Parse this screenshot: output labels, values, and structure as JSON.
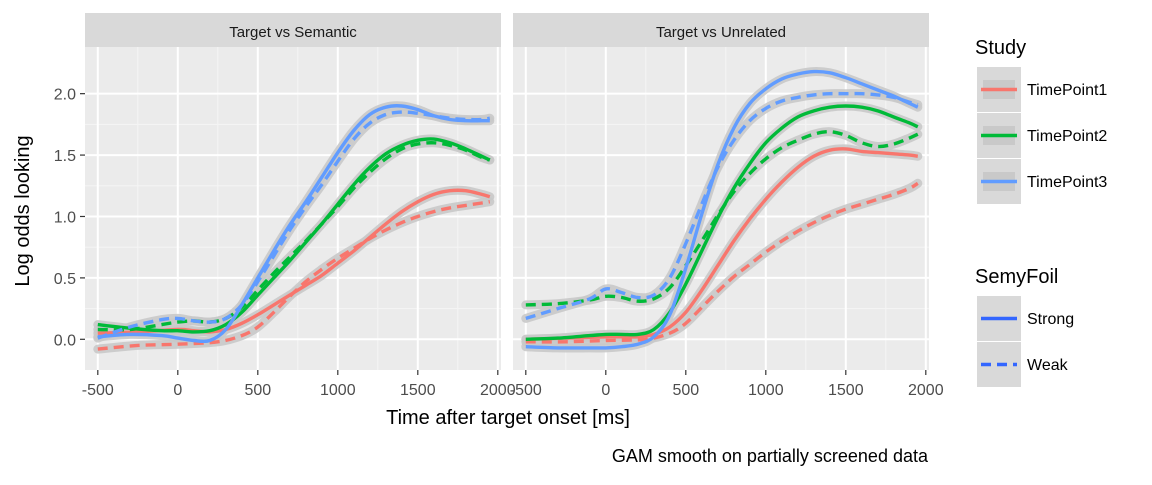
{
  "chart_data": {
    "type": "line",
    "caption": "GAM smooth on partially screened data",
    "xlabel": "Time after target onset [ms]",
    "ylabel": "Log odds looking",
    "xlim": [
      -580,
      2020
    ],
    "ylim": [
      -0.25,
      2.38
    ],
    "x_ticks": [
      -500,
      0,
      500,
      1000,
      1500,
      2000
    ],
    "x_tick_labels": [
      "-500",
      "0",
      "500",
      "1000",
      "1500",
      "2000"
    ],
    "y_ticks": [
      0.0,
      0.5,
      1.0,
      1.5,
      2.0
    ],
    "y_tick_labels": [
      "0.0",
      "0.5",
      "1.0",
      "1.5",
      "2.0"
    ],
    "grid": true,
    "legend_position": "right",
    "legends": [
      {
        "title": "Study",
        "entries": [
          {
            "label": "TimePoint1",
            "color": "#F8766D"
          },
          {
            "label": "TimePoint2",
            "color": "#00BA38"
          },
          {
            "label": "TimePoint3",
            "color": "#619CFF"
          }
        ]
      },
      {
        "title": "SemyFoil",
        "entries": [
          {
            "label": "Strong",
            "linetype": "solid",
            "color": "#3366FF"
          },
          {
            "label": "Weak",
            "linetype": "dashed",
            "color": "#3366FF"
          }
        ]
      }
    ],
    "facets": [
      {
        "label": "Target vs Semantic",
        "series": [
          {
            "study": "TimePoint1",
            "semyfoil": "Strong",
            "x": [
              -500,
              -250,
              0,
              100,
              200,
              300,
              400,
              500,
              600,
              700,
              800,
              900,
              1000,
              1100,
              1200,
              1300,
              1400,
              1500,
              1600,
              1700,
              1800,
              1900,
              1950
            ],
            "y": [
              0.05,
              0.06,
              0.08,
              0.07,
              0.06,
              0.08,
              0.13,
              0.2,
              0.28,
              0.36,
              0.44,
              0.52,
              0.62,
              0.72,
              0.83,
              0.94,
              1.04,
              1.12,
              1.18,
              1.21,
              1.21,
              1.18,
              1.16
            ]
          },
          {
            "study": "TimePoint1",
            "semyfoil": "Weak",
            "x": [
              -500,
              -250,
              0,
              250,
              400,
              500,
              600,
              700,
              800,
              900,
              1000,
              1100,
              1200,
              1300,
              1400,
              1500,
              1600,
              1700,
              1800,
              1900,
              1950
            ],
            "y": [
              -0.08,
              -0.05,
              -0.04,
              -0.02,
              0.03,
              0.1,
              0.22,
              0.35,
              0.47,
              0.57,
              0.66,
              0.74,
              0.82,
              0.89,
              0.95,
              1.0,
              1.04,
              1.07,
              1.09,
              1.11,
              1.12
            ]
          },
          {
            "study": "TimePoint2",
            "semyfoil": "Strong",
            "x": [
              -500,
              -300,
              -100,
              0,
              100,
              200,
              300,
              400,
              500,
              600,
              700,
              800,
              900,
              1000,
              1100,
              1200,
              1300,
              1400,
              1500,
              1600,
              1700,
              1800,
              1900,
              1950
            ],
            "y": [
              0.12,
              0.09,
              0.07,
              0.07,
              0.06,
              0.07,
              0.12,
              0.22,
              0.36,
              0.5,
              0.64,
              0.79,
              0.94,
              1.1,
              1.26,
              1.4,
              1.51,
              1.58,
              1.62,
              1.63,
              1.6,
              1.55,
              1.49,
              1.46
            ]
          },
          {
            "study": "TimePoint2",
            "semyfoil": "Weak",
            "x": [
              -500,
              -300,
              -100,
              0,
              100,
              200,
              300,
              400,
              500,
              600,
              700,
              800,
              900,
              1000,
              1100,
              1200,
              1300,
              1400,
              1500,
              1600,
              1700,
              1800,
              1900,
              1950
            ],
            "y": [
              0.08,
              0.08,
              0.12,
              0.14,
              0.15,
              0.14,
              0.17,
              0.26,
              0.4,
              0.54,
              0.67,
              0.8,
              0.94,
              1.08,
              1.23,
              1.36,
              1.47,
              1.55,
              1.59,
              1.6,
              1.58,
              1.54,
              1.48,
              1.46
            ]
          },
          {
            "study": "TimePoint3",
            "semyfoil": "Strong",
            "x": [
              -500,
              -300,
              -100,
              0,
              100,
              200,
              300,
              400,
              500,
              600,
              700,
              800,
              900,
              1000,
              1100,
              1200,
              1300,
              1400,
              1500,
              1600,
              1700,
              1800,
              1900,
              1950
            ],
            "y": [
              0.02,
              0.04,
              0.03,
              0.01,
              -0.01,
              -0.01,
              0.08,
              0.28,
              0.5,
              0.72,
              0.93,
              1.12,
              1.32,
              1.52,
              1.7,
              1.83,
              1.89,
              1.9,
              1.87,
              1.82,
              1.79,
              1.78,
              1.78,
              1.78
            ]
          },
          {
            "study": "TimePoint3",
            "semyfoil": "Weak",
            "x": [
              -500,
              -300,
              -100,
              0,
              100,
              200,
              300,
              400,
              500,
              600,
              700,
              800,
              900,
              1000,
              1100,
              1200,
              1300,
              1400,
              1500,
              1600,
              1700,
              1800,
              1900,
              1950
            ],
            "y": [
              0.01,
              0.1,
              0.16,
              0.17,
              0.15,
              0.14,
              0.17,
              0.28,
              0.47,
              0.68,
              0.89,
              1.08,
              1.26,
              1.45,
              1.63,
              1.76,
              1.83,
              1.85,
              1.84,
              1.82,
              1.8,
              1.79,
              1.79,
              1.8
            ]
          }
        ]
      },
      {
        "label": "Target vs Unrelated",
        "series": [
          {
            "study": "TimePoint1",
            "semyfoil": "Strong",
            "x": [
              -500,
              -250,
              0,
              100,
              200,
              300,
              400,
              500,
              600,
              700,
              800,
              900,
              1000,
              1100,
              1200,
              1300,
              1400,
              1500,
              1600,
              1700,
              1800,
              1900,
              1950
            ],
            "y": [
              0.0,
              0.01,
              0.02,
              0.02,
              0.02,
              0.04,
              0.1,
              0.22,
              0.4,
              0.6,
              0.8,
              0.98,
              1.14,
              1.28,
              1.4,
              1.49,
              1.54,
              1.55,
              1.53,
              1.52,
              1.51,
              1.5,
              1.49
            ]
          },
          {
            "study": "TimePoint1",
            "semyfoil": "Weak",
            "x": [
              -500,
              -250,
              0,
              250,
              400,
              500,
              600,
              700,
              800,
              900,
              1000,
              1100,
              1200,
              1300,
              1400,
              1500,
              1600,
              1700,
              1800,
              1900,
              1950
            ],
            "y": [
              -0.02,
              -0.02,
              -0.01,
              0.0,
              0.05,
              0.13,
              0.26,
              0.39,
              0.51,
              0.61,
              0.71,
              0.8,
              0.88,
              0.95,
              1.01,
              1.06,
              1.1,
              1.14,
              1.18,
              1.23,
              1.27
            ]
          },
          {
            "study": "TimePoint2",
            "semyfoil": "Strong",
            "x": [
              -500,
              -300,
              -100,
              0,
              100,
              200,
              300,
              400,
              500,
              600,
              700,
              800,
              900,
              1000,
              1100,
              1200,
              1300,
              1400,
              1500,
              1600,
              1700,
              1800,
              1900,
              1950
            ],
            "y": [
              0.0,
              0.01,
              0.03,
              0.04,
              0.04,
              0.04,
              0.08,
              0.22,
              0.45,
              0.72,
              0.99,
              1.23,
              1.43,
              1.6,
              1.72,
              1.81,
              1.86,
              1.89,
              1.9,
              1.89,
              1.86,
              1.81,
              1.76,
              1.73
            ]
          },
          {
            "study": "TimePoint2",
            "semyfoil": "Weak",
            "x": [
              -500,
              -300,
              -100,
              0,
              100,
              200,
              300,
              400,
              500,
              600,
              700,
              800,
              900,
              1000,
              1100,
              1200,
              1300,
              1400,
              1500,
              1600,
              1700,
              1800,
              1900,
              1950
            ],
            "y": [
              0.28,
              0.29,
              0.32,
              0.35,
              0.34,
              0.31,
              0.33,
              0.42,
              0.6,
              0.8,
              1.01,
              1.2,
              1.35,
              1.47,
              1.56,
              1.62,
              1.67,
              1.69,
              1.66,
              1.6,
              1.57,
              1.59,
              1.64,
              1.67
            ]
          },
          {
            "study": "TimePoint3",
            "semyfoil": "Strong",
            "x": [
              -500,
              -300,
              -100,
              0,
              100,
              200,
              300,
              400,
              500,
              600,
              700,
              800,
              900,
              1000,
              1100,
              1200,
              1300,
              1400,
              1500,
              1600,
              1700,
              1800,
              1900,
              1950
            ],
            "y": [
              -0.06,
              -0.07,
              -0.07,
              -0.07,
              -0.06,
              -0.04,
              0.02,
              0.2,
              0.58,
              1.02,
              1.42,
              1.72,
              1.92,
              2.04,
              2.12,
              2.16,
              2.18,
              2.17,
              2.13,
              2.08,
              2.03,
              1.98,
              1.92,
              1.89
            ]
          },
          {
            "study": "TimePoint3",
            "semyfoil": "Weak",
            "x": [
              -500,
              -300,
              -100,
              0,
              100,
              200,
              300,
              400,
              500,
              600,
              700,
              800,
              900,
              1000,
              1100,
              1200,
              1300,
              1400,
              1500,
              1600,
              1700,
              1800,
              1900,
              1950
            ],
            "y": [
              0.17,
              0.25,
              0.33,
              0.41,
              0.38,
              0.34,
              0.36,
              0.5,
              0.78,
              1.1,
              1.4,
              1.62,
              1.78,
              1.88,
              1.94,
              1.97,
              1.99,
              2.0,
              2.0,
              2.0,
              1.99,
              1.97,
              1.93,
              1.91
            ]
          }
        ]
      }
    ]
  }
}
